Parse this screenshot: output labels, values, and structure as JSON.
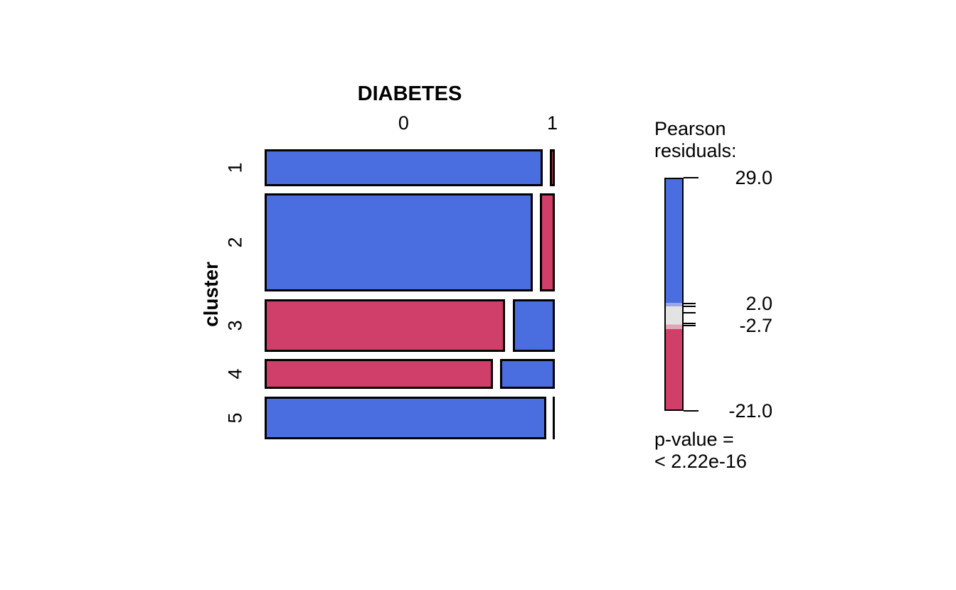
{
  "figure": {
    "title": "DIABETES",
    "y_axis_title": "cluster"
  },
  "legend": {
    "title_lines": [
      "Pearson",
      "residuals:"
    ],
    "pvalue_lines": [
      "p-value =",
      "< 2.22e-16"
    ],
    "ticks": [
      {
        "v": 29.0,
        "long": true,
        "label": "29.0"
      },
      {
        "v": 2.0,
        "long": false,
        "label": "2.0"
      },
      {
        "v": 1.4,
        "long": false
      },
      {
        "v": 0.0,
        "long": false
      },
      {
        "v": -2.3,
        "long": false
      },
      {
        "v": -2.7,
        "long": false,
        "label": "-2.7"
      },
      {
        "v": -21.0,
        "long": true,
        "label": "-21.0"
      }
    ],
    "scale_max": 29.0,
    "scale_min": -21.0,
    "bands": [
      {
        "color_key": "positive",
        "to": 0.537
      },
      {
        "color_key": "legend_light_blue",
        "to": 0.552
      },
      {
        "color_key": "legend_gray",
        "to": 0.631
      },
      {
        "color_key": "legend_light_pink",
        "to": 0.652
      },
      {
        "color_key": "negative",
        "to": 1.0
      }
    ]
  },
  "colors": {
    "positive": "#4a6ee0",
    "negative": "#d03e6a",
    "legend_light_blue": "#9ba7e1",
    "legend_gray": "#e3e3e3",
    "legend_light_pink": "#dfa7b5",
    "tile_border": "#000000",
    "background": "#ffffff"
  },
  "chart_data": {
    "type": "mosaic",
    "x_variable": "DIABETES",
    "y_variable": "cluster",
    "x_categories": [
      "0",
      "1"
    ],
    "y_categories": [
      "1",
      "2",
      "3",
      "4",
      "5"
    ],
    "row_share": [
      0.142,
      0.377,
      0.202,
      0.115,
      0.164
    ],
    "cell_share_within_row": [
      [
        0.982,
        0.018
      ],
      [
        0.947,
        0.053
      ],
      [
        0.85,
        0.147
      ],
      [
        0.806,
        0.194
      ],
      [
        0.995,
        0.001
      ]
    ],
    "cell_residual_sign": [
      [
        "pos",
        "neg"
      ],
      [
        "pos",
        "neg"
      ],
      [
        "neg",
        "pos"
      ],
      [
        "neg",
        "pos"
      ],
      [
        "pos",
        "neg"
      ]
    ],
    "legend_scale": {
      "max": 29.0,
      "cut_positive": 2.0,
      "cut_negative": -2.7,
      "min": -21.0
    },
    "p_value": "< 2.22e-16"
  }
}
